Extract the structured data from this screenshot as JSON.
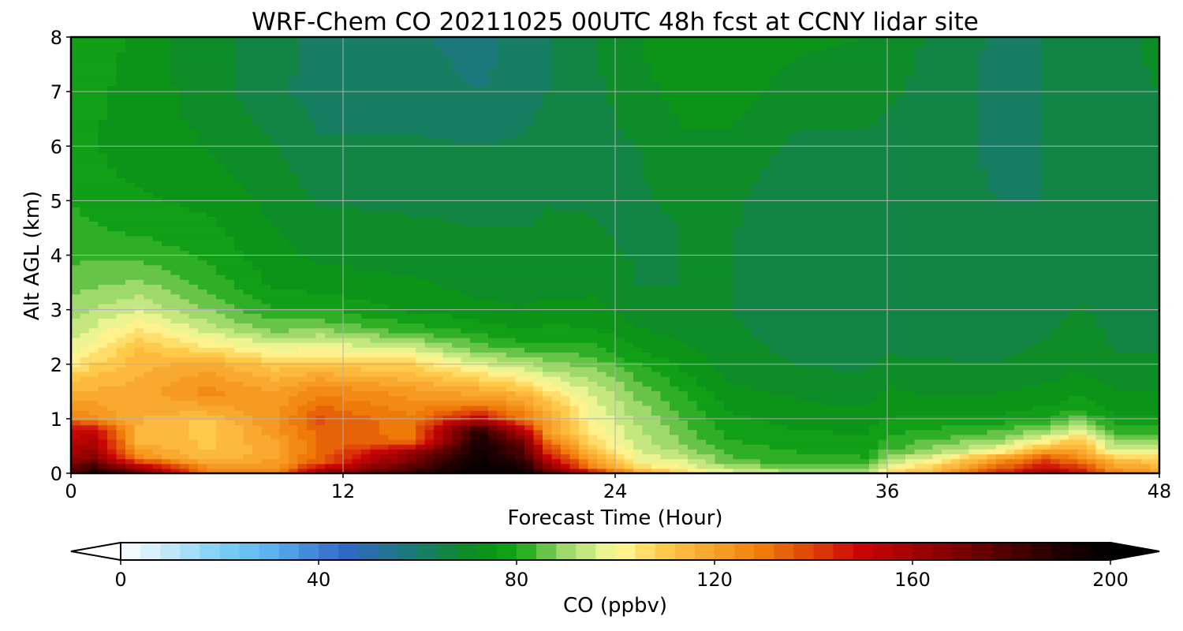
{
  "chart_data": {
    "type": "heatmap",
    "title": "WRF-Chem CO  20211025 00UTC 48h fcst at CCNY lidar site",
    "xlabel": "Forecast Time (Hour)",
    "ylabel": "Alt AGL (km)",
    "xlim": [
      0,
      48
    ],
    "ylim": [
      0,
      8
    ],
    "x_ticks": [
      "0",
      "12",
      "24",
      "36",
      "48"
    ],
    "y_ticks": [
      "0",
      "1",
      "2",
      "3",
      "4",
      "5",
      "6",
      "7",
      "8"
    ],
    "grid": true,
    "colorbar": {
      "label": "CO  (ppbv)",
      "range": [
        0,
        200
      ],
      "extend": "both",
      "ticks": [
        "0",
        "40",
        "80",
        "120",
        "160",
        "200"
      ],
      "tick_values": [
        0,
        40,
        80,
        120,
        160,
        200
      ],
      "stops": [
        {
          "value": 0,
          "color": "#ffffff"
        },
        {
          "value": 20,
          "color": "#7dd0f5"
        },
        {
          "value": 30,
          "color": "#5cb3f0"
        },
        {
          "value": 45,
          "color": "#3168c9"
        },
        {
          "value": 60,
          "color": "#1a7a70"
        },
        {
          "value": 72,
          "color": "#0a8f1a"
        },
        {
          "value": 80,
          "color": "#12a414"
        },
        {
          "value": 90,
          "color": "#9fd96b"
        },
        {
          "value": 100,
          "color": "#fffb9c"
        },
        {
          "value": 110,
          "color": "#ffc94a"
        },
        {
          "value": 130,
          "color": "#f07a08"
        },
        {
          "value": 150,
          "color": "#c80505"
        },
        {
          "value": 170,
          "color": "#7a0000"
        },
        {
          "value": 190,
          "color": "#1e0000"
        },
        {
          "value": 200,
          "color": "#000000"
        }
      ]
    },
    "profile_columns": [
      {
        "hour": 0,
        "profile": [
          [
            0,
            175
          ],
          [
            0.5,
            155
          ],
          [
            0.9,
            145
          ],
          [
            1.0,
            128
          ],
          [
            1.7,
            112
          ],
          [
            2.0,
            102
          ],
          [
            2.5,
            95
          ],
          [
            3.2,
            88
          ],
          [
            4.0,
            83
          ],
          [
            5.0,
            80
          ],
          [
            6.0,
            78
          ],
          [
            7.0,
            79
          ],
          [
            8.0,
            80
          ]
        ]
      },
      {
        "hour": 1,
        "profile": [
          [
            0,
            195
          ],
          [
            0.3,
            165
          ],
          [
            0.8,
            150
          ],
          [
            1.0,
            125
          ],
          [
            1.8,
            112
          ],
          [
            2.3,
            102
          ],
          [
            2.7,
            96
          ],
          [
            3.5,
            87
          ],
          [
            4.2,
            82
          ],
          [
            5.0,
            78
          ],
          [
            6.0,
            76
          ],
          [
            7.0,
            77
          ],
          [
            8.0,
            78
          ]
        ]
      },
      {
        "hour": 3,
        "profile": [
          [
            0,
            175
          ],
          [
            0.3,
            125
          ],
          [
            0.6,
            115
          ],
          [
            1.5,
            118
          ],
          [
            2.3,
            112
          ],
          [
            2.7,
            103
          ],
          [
            3.0,
            96
          ],
          [
            3.4,
            90
          ],
          [
            3.9,
            84
          ],
          [
            4.6,
            78
          ],
          [
            5.5,
            75
          ],
          [
            6.5,
            74
          ],
          [
            8.0,
            75
          ]
        ]
      },
      {
        "hour": 6,
        "profile": [
          [
            0,
            130
          ],
          [
            0.3,
            112
          ],
          [
            0.9,
            110
          ],
          [
            1.5,
            126
          ],
          [
            2.0,
            118
          ],
          [
            2.3,
            105
          ],
          [
            2.7,
            93
          ],
          [
            3.2,
            85
          ],
          [
            4.0,
            79
          ],
          [
            5.0,
            75
          ],
          [
            6.0,
            72
          ],
          [
            7.0,
            70
          ],
          [
            8.0,
            69
          ]
        ]
      },
      {
        "hour": 9,
        "profile": [
          [
            0,
            125
          ],
          [
            0.4,
            118
          ],
          [
            1.0,
            124
          ],
          [
            1.5,
            120
          ],
          [
            2.0,
            110
          ],
          [
            2.3,
            98
          ],
          [
            2.6,
            88
          ],
          [
            3.0,
            80
          ],
          [
            3.5,
            75
          ],
          [
            4.5,
            72
          ],
          [
            6.0,
            68
          ],
          [
            7.0,
            65
          ],
          [
            8.0,
            66
          ]
        ]
      },
      {
        "hour": 11,
        "profile": [
          [
            0,
            165
          ],
          [
            0.2,
            135
          ],
          [
            0.5,
            132
          ],
          [
            1.0,
            137
          ],
          [
            1.6,
            125
          ],
          [
            2.0,
            110
          ],
          [
            2.4,
            96
          ],
          [
            2.8,
            84
          ],
          [
            3.3,
            76
          ],
          [
            4.0,
            71
          ],
          [
            5.5,
            66
          ],
          [
            7.0,
            62
          ],
          [
            8.0,
            62
          ]
        ]
      },
      {
        "hour": 15,
        "profile": [
          [
            0,
            185
          ],
          [
            0.4,
            160
          ],
          [
            0.6,
            132
          ],
          [
            1.0,
            129
          ],
          [
            1.5,
            122
          ],
          [
            2.0,
            108
          ],
          [
            2.3,
            96
          ],
          [
            2.6,
            83
          ],
          [
            3.0,
            75
          ],
          [
            4.0,
            70
          ],
          [
            5.5,
            66
          ],
          [
            7.0,
            62
          ],
          [
            8.0,
            61
          ]
        ]
      },
      {
        "hour": 18,
        "profile": [
          [
            0,
            200
          ],
          [
            0.8,
            190
          ],
          [
            1.0,
            152
          ],
          [
            1.3,
            126
          ],
          [
            1.7,
            110
          ],
          [
            2.0,
            97
          ],
          [
            2.3,
            86
          ],
          [
            2.7,
            77
          ],
          [
            3.2,
            72
          ],
          [
            4.0,
            69
          ],
          [
            5.5,
            66
          ],
          [
            7.0,
            60
          ],
          [
            8.0,
            58
          ]
        ]
      },
      {
        "hour": 20,
        "profile": [
          [
            0,
            195
          ],
          [
            0.6,
            170
          ],
          [
            1.0,
            130
          ],
          [
            1.4,
            118
          ],
          [
            1.6,
            108
          ],
          [
            1.9,
            96
          ],
          [
            2.2,
            86
          ],
          [
            2.5,
            78
          ],
          [
            3.0,
            72
          ],
          [
            4.0,
            69
          ],
          [
            5.5,
            66
          ],
          [
            7.0,
            62
          ],
          [
            8.0,
            62
          ]
        ]
      },
      {
        "hour": 21,
        "profile": [
          [
            0,
            180
          ],
          [
            0.3,
            150
          ],
          [
            0.7,
            125
          ],
          [
            1.2,
            115
          ],
          [
            1.6,
            102
          ],
          [
            1.9,
            92
          ],
          [
            2.2,
            84
          ],
          [
            2.6,
            77
          ],
          [
            3.2,
            72
          ],
          [
            4.2,
            69
          ],
          [
            5.5,
            67
          ],
          [
            7.0,
            64
          ],
          [
            8.0,
            63
          ]
        ]
      },
      {
        "hour": 23,
        "profile": [
          [
            0,
            150
          ],
          [
            0.15,
            125
          ],
          [
            0.5,
            108
          ],
          [
            1.0,
            100
          ],
          [
            1.5,
            95
          ],
          [
            1.9,
            89
          ],
          [
            2.1,
            85
          ],
          [
            2.5,
            78
          ],
          [
            3.0,
            73
          ],
          [
            4.0,
            69
          ],
          [
            5.5,
            67
          ],
          [
            7.0,
            67
          ],
          [
            8.0,
            68
          ]
        ]
      },
      {
        "hour": 25,
        "profile": [
          [
            0,
            120
          ],
          [
            0.2,
            100
          ],
          [
            0.6,
            94
          ],
          [
            1.0,
            91
          ],
          [
            1.5,
            87
          ],
          [
            1.8,
            83
          ],
          [
            2.2,
            77
          ],
          [
            2.8,
            71
          ],
          [
            3.5,
            68
          ],
          [
            4.5,
            67
          ],
          [
            6.0,
            68
          ],
          [
            7.0,
            70
          ],
          [
            8.0,
            72
          ]
        ]
      },
      {
        "hour": 27,
        "profile": [
          [
            0,
            108
          ],
          [
            0.1,
            100
          ],
          [
            0.5,
            88
          ],
          [
            1.0,
            84
          ],
          [
            1.5,
            80
          ],
          [
            2.0,
            75
          ],
          [
            2.5,
            71
          ],
          [
            3.5,
            68
          ],
          [
            4.5,
            68
          ],
          [
            6.0,
            71
          ],
          [
            7.0,
            74
          ],
          [
            8.0,
            76
          ]
        ]
      },
      {
        "hour": 29,
        "profile": [
          [
            0,
            100
          ],
          [
            0.2,
            86
          ],
          [
            0.6,
            80
          ],
          [
            1.0,
            77
          ],
          [
            1.5,
            73
          ],
          [
            2.0,
            70
          ],
          [
            3.0,
            68
          ],
          [
            4.0,
            68
          ],
          [
            5.0,
            69
          ],
          [
            6.0,
            71
          ],
          [
            7.0,
            74
          ],
          [
            8.0,
            76
          ]
        ]
      },
      {
        "hour": 32,
        "profile": [
          [
            0,
            92
          ],
          [
            0.2,
            82
          ],
          [
            0.7,
            77
          ],
          [
            1.2,
            73
          ],
          [
            2.0,
            68
          ],
          [
            3.0,
            65
          ],
          [
            4.0,
            64
          ],
          [
            5.0,
            65
          ],
          [
            6.0,
            67
          ],
          [
            7.0,
            70
          ],
          [
            8.0,
            73
          ]
        ]
      },
      {
        "hour": 35,
        "profile": [
          [
            0,
            92
          ],
          [
            0.3,
            80
          ],
          [
            0.7,
            76
          ],
          [
            1.2,
            72
          ],
          [
            2.0,
            67
          ],
          [
            3.0,
            65
          ],
          [
            4.0,
            64
          ],
          [
            5.0,
            65
          ],
          [
            6.0,
            67
          ],
          [
            7.0,
            70
          ],
          [
            8.0,
            72
          ]
        ]
      },
      {
        "hour": 36,
        "profile": [
          [
            0,
            108
          ],
          [
            0.2,
            92
          ],
          [
            0.5,
            82
          ],
          [
            1.0,
            76
          ],
          [
            1.6,
            72
          ],
          [
            2.5,
            66
          ],
          [
            4.0,
            64
          ],
          [
            5.5,
            65
          ],
          [
            7.0,
            69
          ],
          [
            8.0,
            71
          ]
        ]
      },
      {
        "hour": 38,
        "profile": [
          [
            0,
            115
          ],
          [
            0.25,
            100
          ],
          [
            0.4,
            90
          ],
          [
            0.7,
            82
          ],
          [
            1.0,
            77
          ],
          [
            1.5,
            71
          ],
          [
            2.5,
            66
          ],
          [
            4.0,
            64
          ],
          [
            5.5,
            65
          ],
          [
            7.0,
            66
          ],
          [
            8.0,
            67
          ]
        ]
      },
      {
        "hour": 41,
        "profile": [
          [
            0,
            145
          ],
          [
            0.3,
            118
          ],
          [
            0.4,
            102
          ],
          [
            0.6,
            90
          ],
          [
            0.9,
            80
          ],
          [
            1.2,
            74
          ],
          [
            2.0,
            68
          ],
          [
            3.5,
            65
          ],
          [
            5.0,
            64
          ],
          [
            6.5,
            63
          ],
          [
            8.0,
            63
          ]
        ]
      },
      {
        "hour": 43,
        "profile": [
          [
            0,
            158
          ],
          [
            0.35,
            130
          ],
          [
            0.5,
            110
          ],
          [
            0.7,
            94
          ],
          [
            1.0,
            80
          ],
          [
            1.3,
            75
          ],
          [
            2.0,
            69
          ],
          [
            3.5,
            66
          ],
          [
            5.0,
            64
          ],
          [
            6.5,
            64
          ],
          [
            8.0,
            64
          ]
        ]
      },
      {
        "hour": 44.5,
        "profile": [
          [
            0,
            150
          ],
          [
            0.3,
            125
          ],
          [
            0.6,
            112
          ],
          [
            0.8,
            96
          ],
          [
            1.1,
            82
          ],
          [
            1.4,
            76
          ],
          [
            2.0,
            71
          ],
          [
            3.5,
            67
          ],
          [
            5.0,
            65
          ],
          [
            6.5,
            65
          ],
          [
            8.0,
            65
          ]
        ]
      },
      {
        "hour": 46,
        "profile": [
          [
            0,
            128
          ],
          [
            0.25,
            112
          ],
          [
            0.4,
            96
          ],
          [
            0.7,
            84
          ],
          [
            1.0,
            77
          ],
          [
            1.5,
            72
          ],
          [
            2.2,
            68
          ],
          [
            3.5,
            66
          ],
          [
            5.0,
            65
          ],
          [
            6.5,
            66
          ],
          [
            8.0,
            66
          ]
        ]
      },
      {
        "hour": 48,
        "profile": [
          [
            0,
            120
          ],
          [
            0.3,
            108
          ],
          [
            0.4,
            96
          ],
          [
            0.7,
            84
          ],
          [
            1.0,
            77
          ],
          [
            1.5,
            72
          ],
          [
            2.2,
            68
          ],
          [
            3.5,
            66
          ],
          [
            5.0,
            65
          ],
          [
            6.5,
            67
          ],
          [
            8.0,
            70
          ]
        ]
      }
    ]
  }
}
